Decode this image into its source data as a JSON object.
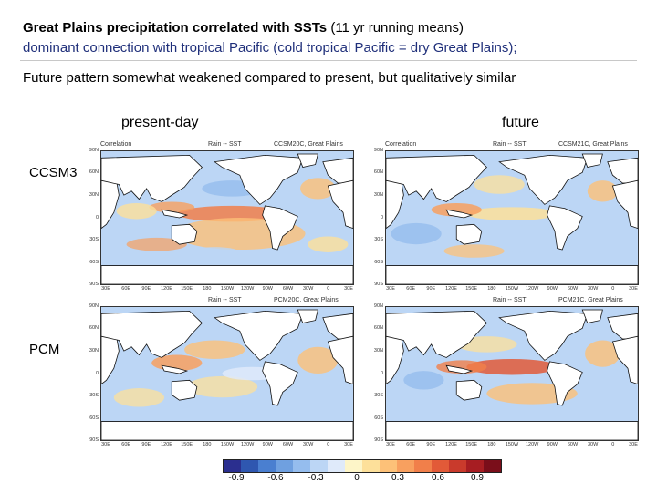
{
  "header": {
    "title_bold": "Great Plains precipitation correlated with SSTs",
    "title_rest": " (11 yr running means)",
    "subtitle": "dominant connection with tropical Pacific (cold tropical Pacific = dry Great Plains);",
    "future_note": "Future pattern somewhat weakened compared to present, but qualitatively similar"
  },
  "columns": {
    "present": "present-day",
    "future": "future"
  },
  "rows": {
    "ccsm3": "CCSM3",
    "pcm": "PCM"
  },
  "panels": [
    {
      "left_label": "Correlation",
      "mid_label": "Rain -- SST",
      "right_label": "CCSM20C, Great Plains"
    },
    {
      "left_label": "Correlation",
      "mid_label": "Rain -- SST",
      "right_label": "CCSM21C, Great Plains"
    },
    {
      "left_label": "",
      "mid_label": "Rain -- SST",
      "right_label": "PCM20C, Great Plains"
    },
    {
      "left_label": "",
      "mid_label": "Rain -- SST",
      "right_label": "PCM21C, Great Plains"
    }
  ],
  "lat_ticks": [
    "90N",
    "60N",
    "30N",
    "0",
    "30S",
    "60S",
    "90S"
  ],
  "lon_ticks": [
    "30E",
    "60E",
    "90E",
    "120E",
    "150E",
    "180",
    "150W",
    "120W",
    "90W",
    "60W",
    "30W",
    "0",
    "30E"
  ],
  "colorbar": {
    "colors": [
      "#2b2f8f",
      "#2f57b0",
      "#4a7fd0",
      "#6fa0e0",
      "#95bdee",
      "#bcd6f5",
      "#dfeafa",
      "#fdf5c8",
      "#fde09a",
      "#fdc178",
      "#f8a05f",
      "#f17f4a",
      "#e25a38",
      "#c93a2c",
      "#a71d22",
      "#7a0e1a"
    ],
    "tick_labels": [
      "-0.9",
      "-0.6",
      "-0.3",
      "0",
      "0.3",
      "0.6",
      "0.9"
    ]
  }
}
